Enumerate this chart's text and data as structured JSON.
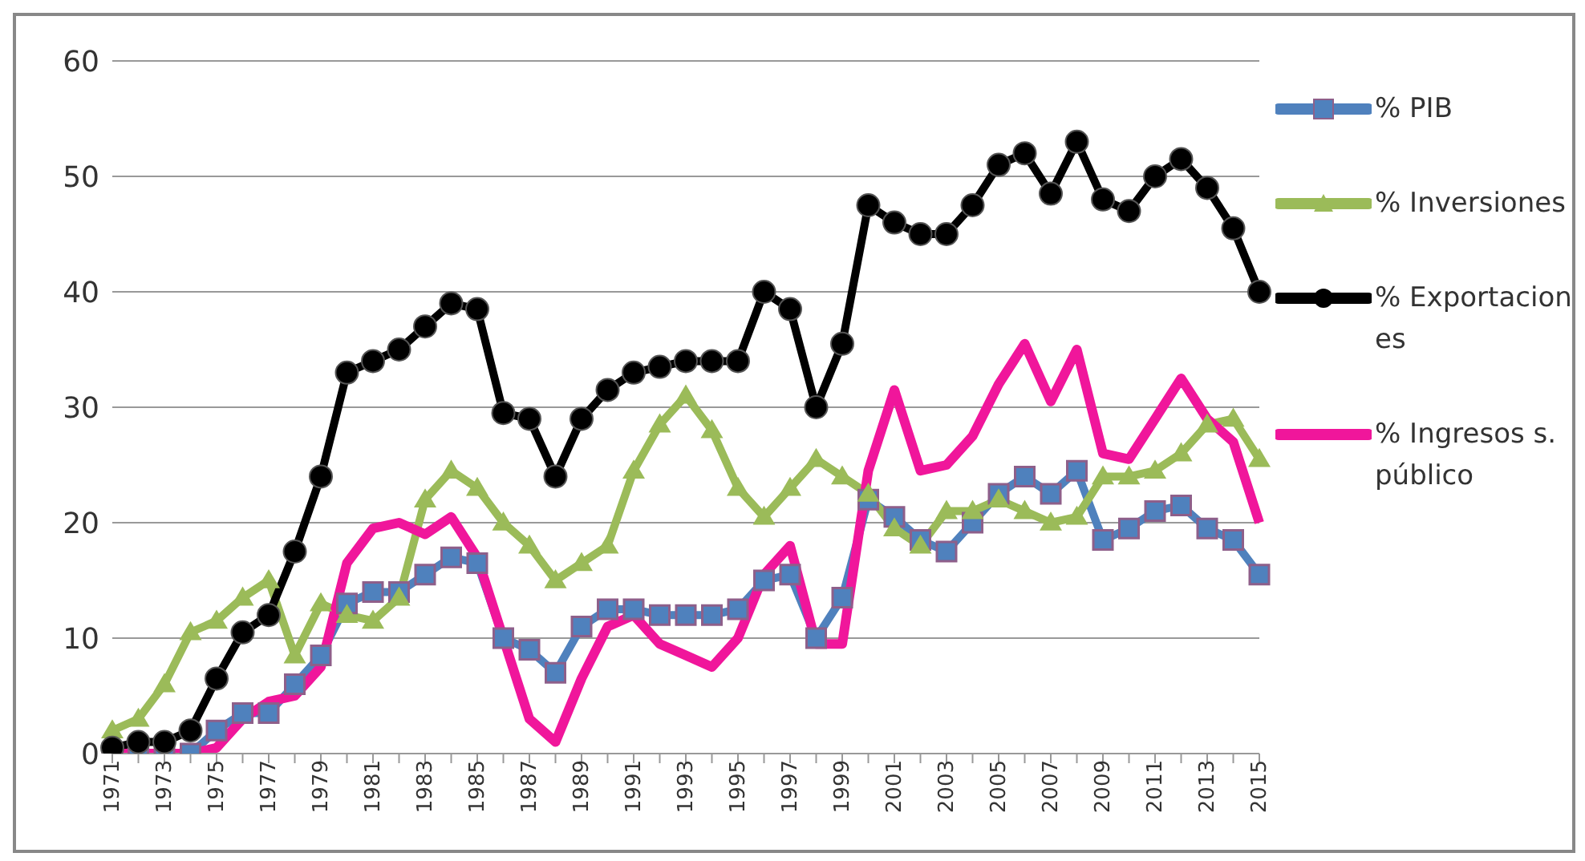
{
  "chart_data": {
    "type": "line",
    "categories": [
      "1971",
      null,
      "1973",
      null,
      "1975",
      null,
      "1977",
      null,
      "1979",
      null,
      "1981",
      null,
      "1983",
      null,
      "1985",
      null,
      "1987",
      null,
      "1989",
      null,
      "1991",
      null,
      "1993",
      null,
      "1995",
      null,
      "1997",
      null,
      "1999",
      null,
      "2001",
      null,
      "2003",
      null,
      "2005",
      null,
      "2007",
      null,
      "2009",
      null,
      "2011",
      null,
      "2013",
      null,
      "2015"
    ],
    "series": [
      {
        "name": "% PIB",
        "color": "#4f81bd",
        "marker": "square",
        "values": [
          0,
          0,
          0,
          0,
          2,
          3.5,
          3.5,
          6,
          8.5,
          13,
          14,
          14,
          15.5,
          17,
          16.5,
          10,
          9,
          7,
          11,
          12.5,
          12.5,
          12,
          12,
          12,
          12.5,
          15,
          15.5,
          10,
          13.5,
          22,
          20.5,
          18.5,
          17.5,
          20,
          22.5,
          24,
          22.5,
          24.5,
          18.5,
          19.5,
          21,
          21.5,
          19.5,
          18.5,
          15.5
        ]
      },
      {
        "name": "% Inversiones",
        "color": "#9bbb59",
        "marker": "triangle",
        "values": [
          2,
          3,
          6,
          10.5,
          11.5,
          13.5,
          15,
          8.5,
          13,
          12,
          11.5,
          13.5,
          22,
          24.5,
          23,
          20,
          18,
          15,
          16.5,
          18,
          24.5,
          28.5,
          31,
          28,
          23,
          20.5,
          23,
          25.5,
          24,
          22.5,
          19.5,
          18,
          21,
          21,
          22,
          21,
          20,
          20.5,
          24,
          24,
          24.5,
          26,
          28.5,
          29,
          25.5
        ]
      },
      {
        "name": "% Exportaciones",
        "color": "#000000",
        "marker": "circle",
        "values": [
          0.5,
          1,
          1,
          2,
          6.5,
          10.5,
          12,
          17.5,
          24,
          33,
          34,
          35,
          37,
          39,
          38.5,
          29.5,
          29,
          24,
          29,
          31.5,
          33,
          33.5,
          34,
          34,
          34,
          40,
          38.5,
          30,
          35.5,
          47.5,
          46,
          45,
          45,
          47.5,
          51,
          52,
          48.5,
          53,
          48,
          47,
          50,
          51.5,
          49,
          45.5,
          40
        ]
      },
      {
        "name": "% Ingresos s. público",
        "color": "#f0169b",
        "marker": "none",
        "values": [
          0,
          0,
          0,
          0,
          0.5,
          3,
          4.5,
          5,
          7.5,
          16.5,
          19.5,
          20,
          19,
          20.5,
          17,
          10,
          3,
          1,
          6.5,
          11,
          12,
          9.5,
          8.5,
          7.5,
          10,
          15.5,
          18,
          9.5,
          9.5,
          24.5,
          31.5,
          24.5,
          25,
          27.5,
          32,
          35.5,
          30.5,
          35,
          26,
          25.5,
          29,
          32.5,
          29,
          27,
          20
        ]
      }
    ],
    "ylim": [
      0,
      60
    ],
    "yticks": [
      0,
      10,
      20,
      30,
      40,
      50,
      60
    ],
    "grid": "y",
    "legend": "right"
  }
}
